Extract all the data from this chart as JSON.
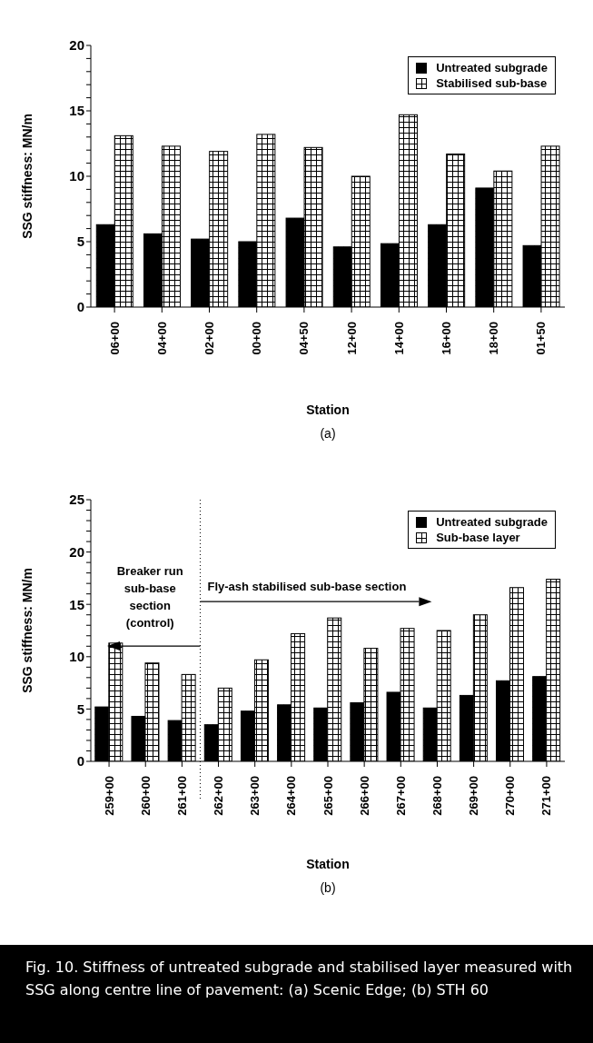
{
  "chart_data": [
    {
      "type": "bar",
      "title": "(a)",
      "xlabel": "Station",
      "ylabel": "SSG stiffness: MN/m",
      "categories": [
        "06+00",
        "04+00",
        "02+00",
        "00+00",
        "04+50",
        "12+00",
        "14+00",
        "16+00",
        "18+00",
        "01+50"
      ],
      "series": [
        {
          "name": "Untreated subgrade",
          "color": "#000000",
          "values": [
            6.3,
            5.6,
            5.2,
            5.0,
            6.8,
            4.6,
            4.85,
            6.3,
            9.1,
            4.7
          ]
        },
        {
          "name": "Stabilised sub-base",
          "color": "#ffffff",
          "values": [
            13.1,
            12.3,
            11.9,
            13.2,
            12.2,
            10.0,
            14.7,
            11.7,
            10.4,
            12.3
          ]
        }
      ],
      "ylim": [
        0,
        20
      ],
      "yticks": [
        0,
        {
          "value": 1,
          "label": null
        },
        {
          "value": 2,
          "label": null
        },
        {
          "value": 3,
          "label": null
        },
        {
          "value": 4,
          "label": null
        },
        5,
        {
          "value": 6,
          "label": null
        },
        {
          "value": 7,
          "label": null
        },
        {
          "value": 8,
          "label": null
        },
        {
          "value": 9,
          "label": null
        },
        10,
        {
          "value": 11,
          "label": null
        },
        {
          "value": 12,
          "label": null
        },
        {
          "value": 13,
          "label": null
        },
        {
          "value": 14,
          "label": null
        },
        15,
        {
          "value": 16,
          "label": null
        },
        {
          "value": 17,
          "label": null
        },
        {
          "value": 18,
          "label": null
        },
        {
          "value": 19,
          "label": null
        },
        20
      ],
      "legend": "top right"
    },
    {
      "type": "bar",
      "title": "(b)",
      "xlabel": "Station",
      "ylabel": "SSG stiffness: MN/m",
      "categories": [
        "259+00",
        "260+00",
        "261+00",
        "262+00",
        "263+00",
        "264+00",
        "265+00",
        "266+00",
        "267+00",
        "268+00",
        "269+00",
        "270+00",
        "271+00"
      ],
      "series": [
        {
          "name": "Untreated subgrade",
          "color": "#000000",
          "values": [
            5.2,
            4.3,
            3.9,
            3.5,
            4.8,
            5.4,
            5.1,
            5.6,
            6.6,
            5.1,
            6.3,
            7.7,
            8.1
          ]
        },
        {
          "name": "Sub-base layer",
          "color": "#ffffff",
          "values": [
            11.3,
            9.4,
            8.3,
            7.0,
            9.7,
            12.2,
            13.7,
            10.8,
            12.7,
            12.5,
            14.0,
            16.6,
            17.4
          ]
        }
      ],
      "ylim": [
        0,
        25
      ],
      "yticks": [
        0,
        {
          "value": 1,
          "label": null
        },
        {
          "value": 2,
          "label": null
        },
        {
          "value": 3,
          "label": null
        },
        {
          "value": 4,
          "label": null
        },
        5,
        {
          "value": 6,
          "label": null
        },
        {
          "value": 7,
          "label": null
        },
        {
          "value": 8,
          "label": null
        },
        {
          "value": 9,
          "label": null
        },
        10,
        {
          "value": 11,
          "label": null
        },
        {
          "value": 12,
          "label": null
        },
        {
          "value": 13,
          "label": null
        },
        {
          "value": 14,
          "label": null
        },
        15,
        {
          "value": 16,
          "label": null
        },
        {
          "value": 17,
          "label": null
        },
        {
          "value": 18,
          "label": null
        },
        {
          "value": 19,
          "label": null
        },
        20,
        {
          "value": 21,
          "label": null
        },
        {
          "value": 22,
          "label": null
        },
        {
          "value": 23,
          "label": null
        },
        {
          "value": 24,
          "label": null
        },
        25
      ],
      "annotations": [
        "Breaker run sub-base section (control)",
        "Fly-ash stabilised sub-base section",
        "Fig. 10. Stiffness of untreated subgrade and stabilised layer measured with SSG along centre line of pavement: (a) Scenic Edge; (b) STH 60"
      ],
      "legend": "top right"
    }
  ]
}
